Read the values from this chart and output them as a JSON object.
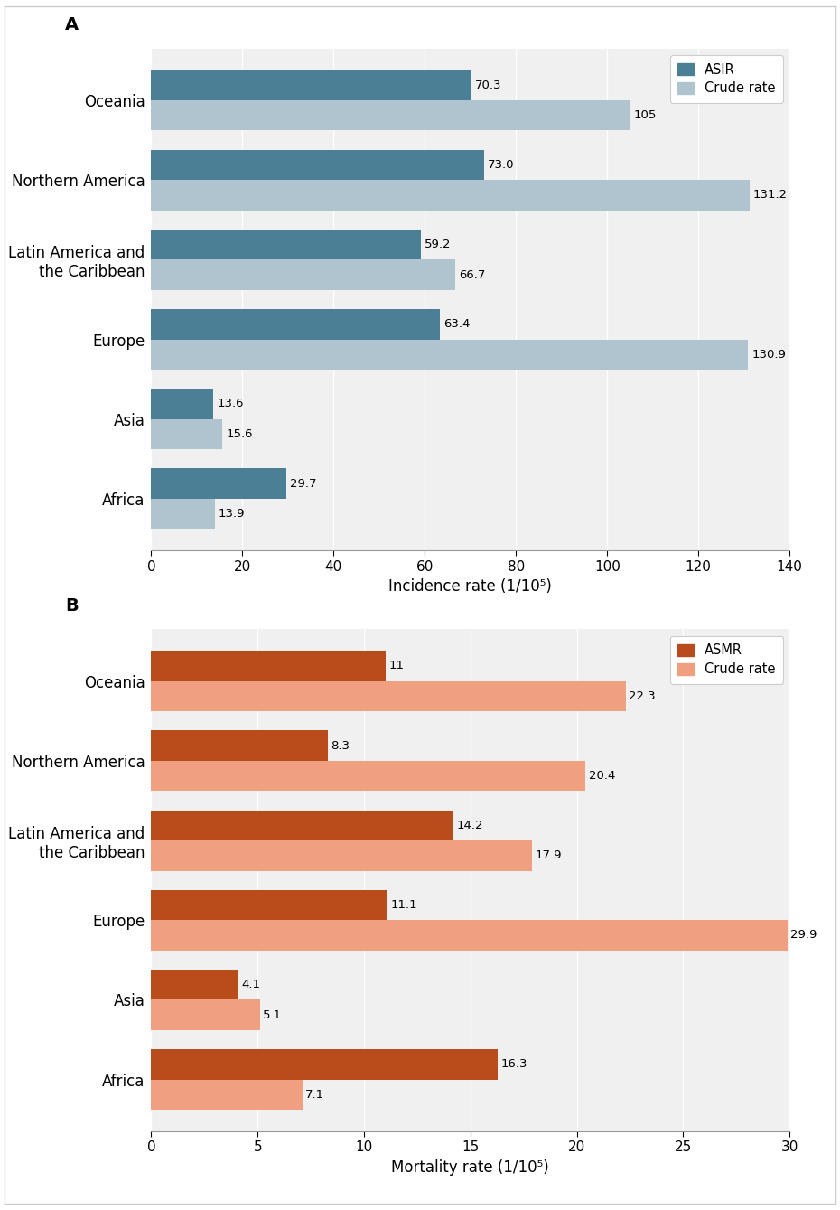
{
  "panel_A": {
    "label": "A",
    "categories": [
      "Oceania",
      "Northern America",
      "Latin America and\nthe Caribbean",
      "Europe",
      "Asia",
      "Africa"
    ],
    "asir": [
      70.3,
      73.0,
      59.2,
      63.4,
      13.6,
      29.7
    ],
    "crude": [
      105.0,
      131.2,
      66.7,
      130.9,
      15.6,
      13.9
    ],
    "asir_color": "#4a7f96",
    "crude_color": "#b0c4d0",
    "xlabel": "Incidence rate (1/10⁵)",
    "xlim": [
      0,
      140
    ],
    "xticks": [
      0,
      20,
      40,
      60,
      80,
      100,
      120,
      140
    ],
    "legend_asir": "ASIR",
    "legend_crude": "Crude rate"
  },
  "panel_B": {
    "label": "B",
    "categories": [
      "Oceania",
      "Northern America",
      "Latin America and\nthe Caribbean",
      "Europe",
      "Asia",
      "Africa"
    ],
    "asmr": [
      11.0,
      8.3,
      14.2,
      11.1,
      4.1,
      16.3
    ],
    "crude": [
      22.3,
      20.4,
      17.9,
      29.9,
      5.1,
      7.1
    ],
    "asmr_color": "#b84c1a",
    "crude_color": "#f0a080",
    "xlabel": "Mortality rate (1/10⁵)",
    "xlim": [
      0,
      30
    ],
    "xticks": [
      0,
      5,
      10,
      15,
      20,
      25,
      30
    ],
    "legend_asmr": "ASMR",
    "legend_crude": "Crude rate"
  },
  "bar_height": 0.38,
  "plot_bg": "#f0f0f0",
  "figure_background": "#ffffff",
  "label_fontsize": 12,
  "tick_fontsize": 11,
  "value_fontsize": 9.5,
  "legend_fontsize": 10.5
}
